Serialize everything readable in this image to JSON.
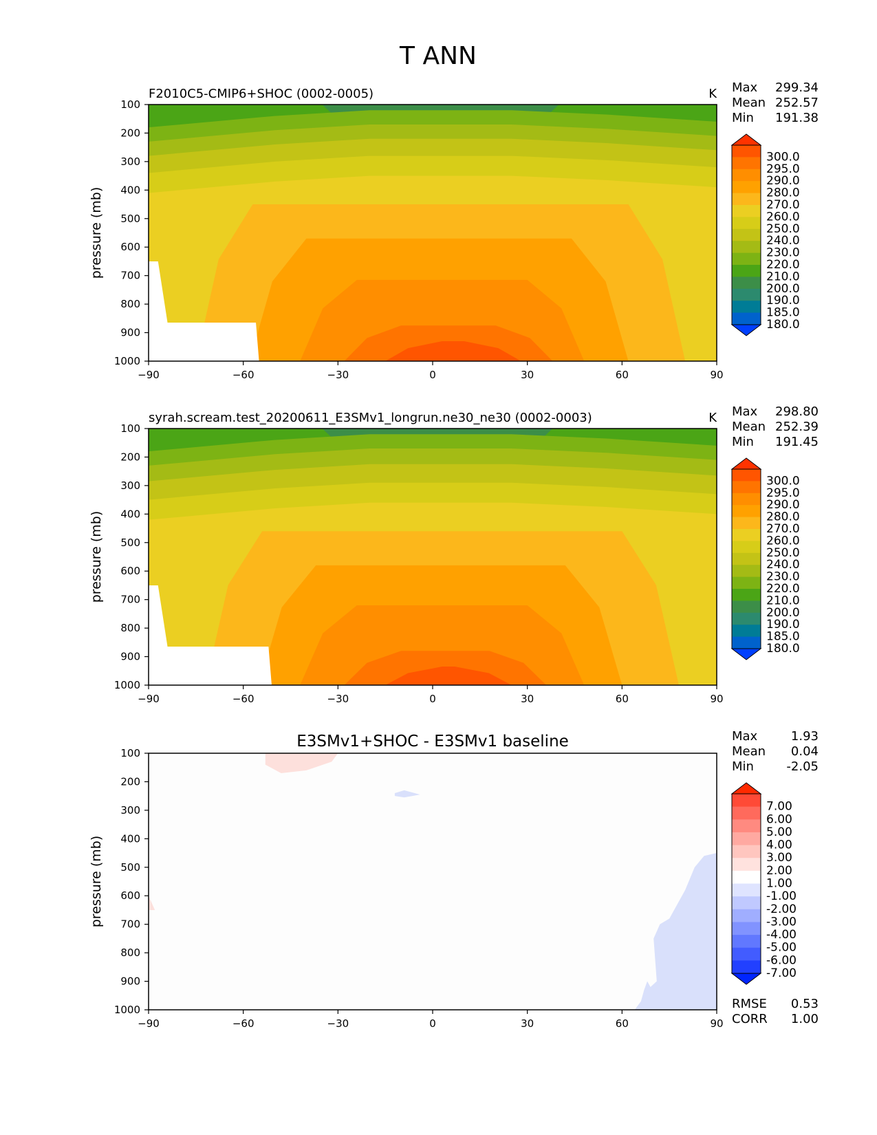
{
  "figure": {
    "title": "T ANN"
  },
  "chart_data": [
    {
      "type": "contour",
      "id": "test",
      "title": "F2010C5-CMIP6+SHOC (0002-0005)",
      "units": "K",
      "xlabel": "",
      "ylabel": "pressure (mb)",
      "x_ticks": [
        "−90",
        "−60",
        "−30",
        "0",
        "30",
        "60",
        "90"
      ],
      "y_ticks": [
        "100",
        "200",
        "300",
        "400",
        "500",
        "600",
        "700",
        "800",
        "900",
        "1000"
      ],
      "xlim": [
        -90,
        90
      ],
      "ylim": [
        1000,
        100
      ],
      "stats": [
        {
          "label": "Max",
          "value": "299.34"
        },
        {
          "label": "Mean",
          "value": "252.57"
        },
        {
          "label": "Min",
          "value": "191.38"
        }
      ],
      "colorbar": {
        "labels": [
          "300.0",
          "295.0",
          "290.0",
          "280.0",
          "270.0",
          "260.0",
          "250.0",
          "240.0",
          "230.0",
          "220.0",
          "210.0",
          "200.0",
          "190.0",
          "185.0",
          "180.0"
        ],
        "colors": [
          "#ff3300",
          "#ff5500",
          "#ff7400",
          "#ff8e00",
          "#ffa100",
          "#fcb71b",
          "#ebcf22",
          "#d7cd18",
          "#c3c316",
          "#a4bb15",
          "#7db314",
          "#4ba516",
          "#3c8e48",
          "#2c8a6e",
          "#007c96",
          "#0062cc",
          "#0040ff"
        ]
      },
      "bands": [
        {
          "color": "#ff5500",
          "top": 930,
          "edges": [
            -15,
            28
          ]
        },
        {
          "color": "#ff7400",
          "top": 875,
          "edges": [
            -28,
            38
          ]
        },
        {
          "color": "#ff8e00",
          "top": 715,
          "edges": [
            -42,
            48
          ]
        },
        {
          "color": "#ffa100",
          "top": 570,
          "edges": [
            -58,
            62
          ]
        },
        {
          "color": "#fcb71b",
          "top": 450,
          "edges": [
            -75,
            80
          ]
        },
        {
          "color": "#ebcf22",
          "top": 350,
          "edges": [
            -90,
            90
          ]
        },
        {
          "color": "#d7cd18",
          "top": 280,
          "edges": [
            -90,
            90
          ]
        },
        {
          "color": "#c3c316",
          "top": 220,
          "edges": [
            -90,
            90
          ]
        },
        {
          "color": "#a4bb15",
          "top": 170,
          "edges": [
            -90,
            90
          ]
        },
        {
          "color": "#7db314",
          "top": 120,
          "edges": [
            -90,
            90
          ]
        },
        {
          "color": "#3c8e48",
          "top": 100,
          "edges": [
            -35,
            40
          ]
        },
        {
          "color": "#2c8a6e",
          "top": 100,
          "edges": [
            -22,
            25
          ]
        }
      ]
    },
    {
      "type": "contour",
      "id": "reference",
      "title": "syrah.scream.test_20200611_E3SMv1_longrun.ne30_ne30 (0002-0003)",
      "units": "K",
      "xlabel": "",
      "ylabel": "pressure (mb)",
      "x_ticks": [
        "−90",
        "−60",
        "−30",
        "0",
        "30",
        "60",
        "90"
      ],
      "y_ticks": [
        "100",
        "200",
        "300",
        "400",
        "500",
        "600",
        "700",
        "800",
        "900",
        "1000"
      ],
      "xlim": [
        -90,
        90
      ],
      "ylim": [
        1000,
        100
      ],
      "stats": [
        {
          "label": "Max",
          "value": "298.80"
        },
        {
          "label": "Mean",
          "value": "252.39"
        },
        {
          "label": "Min",
          "value": "191.45"
        }
      ],
      "colorbar": {
        "labels": [
          "300.0",
          "295.0",
          "290.0",
          "280.0",
          "270.0",
          "260.0",
          "250.0",
          "240.0",
          "230.0",
          "220.0",
          "210.0",
          "200.0",
          "190.0",
          "185.0",
          "180.0"
        ],
        "colors": [
          "#ff3300",
          "#ff5500",
          "#ff7400",
          "#ff8e00",
          "#ffa100",
          "#fcb71b",
          "#ebcf22",
          "#d7cd18",
          "#c3c316",
          "#a4bb15",
          "#7db314",
          "#4ba516",
          "#3c8e48",
          "#2c8a6e",
          "#007c96",
          "#0062cc",
          "#0040ff"
        ]
      },
      "bands": [
        {
          "color": "#ff5500",
          "top": 935,
          "edges": [
            -15,
            25
          ]
        },
        {
          "color": "#ff7400",
          "top": 880,
          "edges": [
            -28,
            36
          ]
        },
        {
          "color": "#ff8e00",
          "top": 720,
          "edges": [
            -42,
            48
          ]
        },
        {
          "color": "#ffa100",
          "top": 580,
          "edges": [
            -55,
            60
          ]
        },
        {
          "color": "#fcb71b",
          "top": 460,
          "edges": [
            -72,
            78
          ]
        },
        {
          "color": "#ebcf22",
          "top": 360,
          "edges": [
            -90,
            90
          ]
        },
        {
          "color": "#d7cd18",
          "top": 290,
          "edges": [
            -90,
            90
          ]
        },
        {
          "color": "#c3c316",
          "top": 225,
          "edges": [
            -90,
            90
          ]
        },
        {
          "color": "#a4bb15",
          "top": 170,
          "edges": [
            -90,
            90
          ]
        },
        {
          "color": "#7db314",
          "top": 120,
          "edges": [
            -90,
            90
          ]
        },
        {
          "color": "#3c8e48",
          "top": 100,
          "edges": [
            -35,
            38
          ]
        },
        {
          "color": "#2c8a6e",
          "top": 100,
          "edges": [
            -22,
            24
          ]
        }
      ]
    },
    {
      "type": "contour",
      "id": "difference",
      "title": "E3SMv1+SHOC - E3SMv1 baseline",
      "units": "",
      "xlabel": "",
      "ylabel": "pressure (mb)",
      "x_ticks": [
        "−90",
        "−60",
        "−30",
        "0",
        "30",
        "60",
        "90"
      ],
      "y_ticks": [
        "100",
        "200",
        "300",
        "400",
        "500",
        "600",
        "700",
        "800",
        "900",
        "1000"
      ],
      "xlim": [
        -90,
        90
      ],
      "ylim": [
        1000,
        100
      ],
      "stats": [
        {
          "label": "Max",
          "value": "1.93"
        },
        {
          "label": "Mean",
          "value": "0.04"
        },
        {
          "label": "Min",
          "value": "-2.05"
        }
      ],
      "metrics": [
        {
          "label": "RMSE",
          "value": "0.53"
        },
        {
          "label": "CORR",
          "value": "1.00"
        }
      ],
      "colorbar": {
        "labels": [
          "7.00",
          "6.00",
          "5.00",
          "4.00",
          "3.00",
          "2.00",
          "1.00",
          "-1.00",
          "-2.00",
          "-3.00",
          "-4.00",
          "-5.00",
          "-6.00",
          "-7.00"
        ],
        "colors": [
          "#ff2a00",
          "#ff4a36",
          "#ff6a5c",
          "#ff8a80",
          "#ffa9a1",
          "#ffc6bf",
          "#ffe2de",
          "#ffffff",
          "#dfe4ff",
          "#c0c9ff",
          "#a0aeff",
          "#8193ff",
          "#6178ff",
          "#425cff",
          "#2240ff",
          "#0025ff"
        ]
      },
      "regions": [
        {
          "color": "#fde0dc",
          "points": [
            [
              -53,
              100
            ],
            [
              -30,
              100
            ],
            [
              -32,
              130
            ],
            [
              -40,
              160
            ],
            [
              -48,
              170
            ],
            [
              -53,
              140
            ]
          ]
        },
        {
          "color": "#fde0dc",
          "points": [
            [
              -90,
              600
            ],
            [
              -88,
              650
            ],
            [
              -90,
              650
            ]
          ]
        },
        {
          "color": "#d9e0fb",
          "points": [
            [
              -12,
              240
            ],
            [
              -9,
              230
            ],
            [
              -4,
              245
            ],
            [
              -9,
              255
            ],
            [
              -12,
              250
            ]
          ]
        },
        {
          "color": "#d9e0fb",
          "points": [
            [
              90,
              450
            ],
            [
              86,
              460
            ],
            [
              83,
              500
            ],
            [
              80,
              580
            ],
            [
              78,
              620
            ],
            [
              75,
              680
            ],
            [
              72,
              700
            ],
            [
              70,
              750
            ],
            [
              71,
              900
            ],
            [
              69,
              920
            ],
            [
              68,
              900
            ],
            [
              67,
              930
            ],
            [
              66,
              970
            ],
            [
              64,
              1000
            ],
            [
              90,
              1000
            ]
          ]
        }
      ]
    }
  ]
}
